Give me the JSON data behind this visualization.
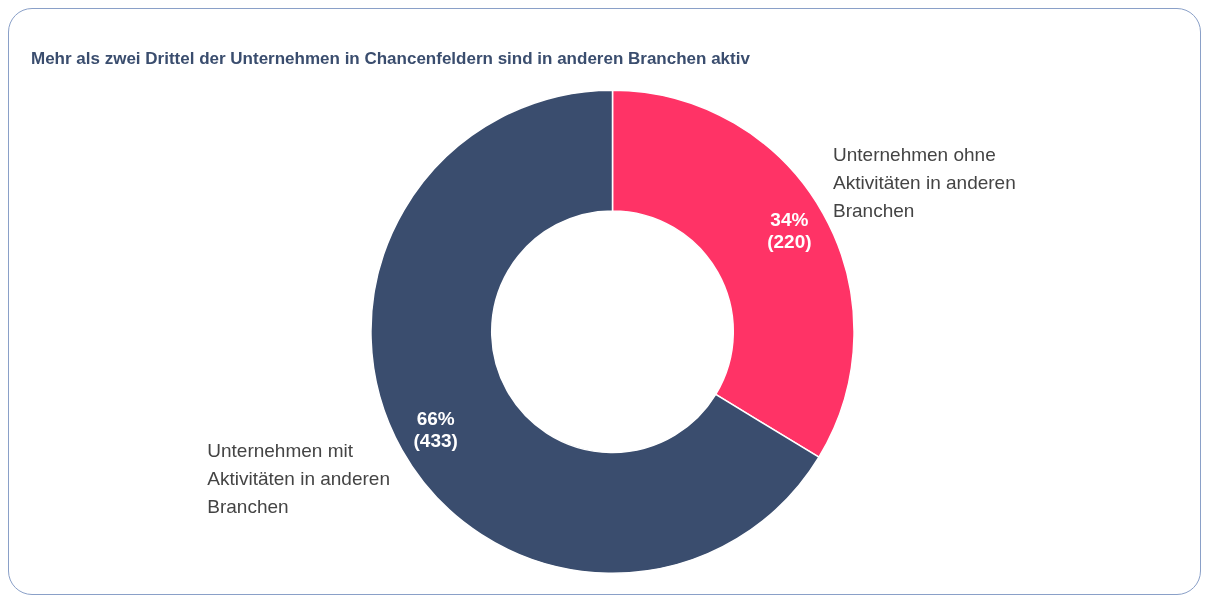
{
  "chart_data": {
    "type": "donut",
    "title": "Mehr als zwei Drittel der Unternehmen in Chancenfeldern sind in anderen Branchen aktiv",
    "categories": [
      "Unternehmen ohne Aktivitäten in anderen Branchen",
      "Unternehmen mit Aktivitäten in anderen Branchen"
    ],
    "values": [
      220,
      433
    ],
    "colors": [
      "#ff3366",
      "#3a4d6e"
    ],
    "value_labels": [
      "34%\n(220)",
      "66%\n(433)"
    ],
    "legend": false
  }
}
